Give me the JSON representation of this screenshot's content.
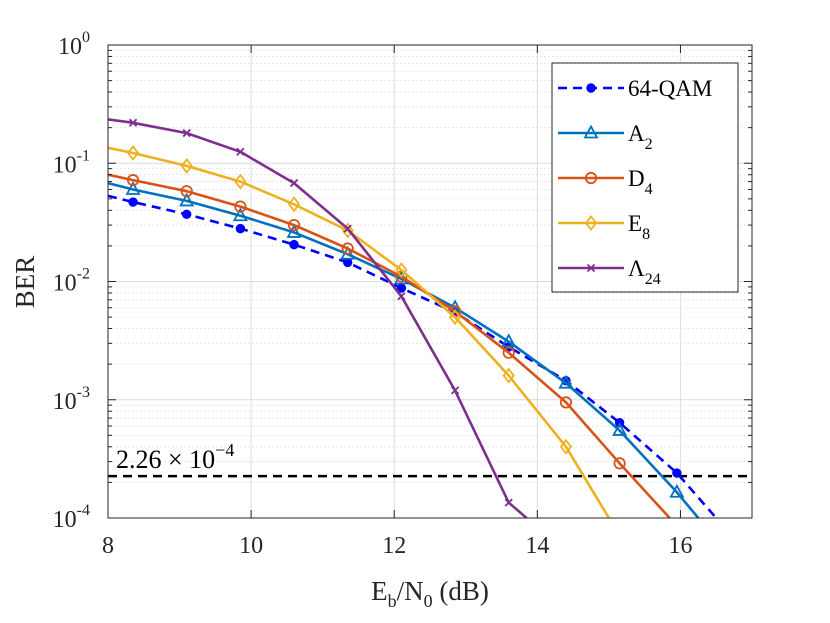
{
  "chart_data": {
    "type": "line",
    "title": "",
    "xlabel": {
      "main": "E",
      "sub1": "b",
      "slash": "/N",
      "sub2": "0",
      "unit": " (dB)"
    },
    "ylabel": "BER",
    "xlim": [
      8,
      17
    ],
    "ylim": [
      0.0001,
      1
    ],
    "yscale": "log",
    "grid": true,
    "minor_grid": true,
    "legend_position": "top-right",
    "x_ticks": [
      8,
      10,
      12,
      14,
      16
    ],
    "x_tick_labels": [
      "8",
      "10",
      "12",
      "14",
      "16"
    ],
    "y_ticks": [
      {
        "value": 1,
        "base": "10",
        "exp": "0"
      },
      {
        "value": 0.1,
        "base": "10",
        "exp": "-1"
      },
      {
        "value": 0.01,
        "base": "10",
        "exp": "-2"
      },
      {
        "value": 0.001,
        "base": "10",
        "exp": "-3"
      },
      {
        "value": 0.0001,
        "base": "10",
        "exp": "-4"
      }
    ],
    "series": [
      {
        "name": "64-QAM",
        "label": {
          "main": "64-QAM",
          "sub": ""
        },
        "color": "#0000ff",
        "line": "dashed",
        "marker": "dot",
        "x": [
          8,
          8.35,
          9.1,
          9.85,
          10.6,
          11.35,
          12.1,
          12.85,
          13.6,
          14.4,
          15.15,
          15.95,
          16.5
        ],
        "y": [
          0.053,
          0.047,
          0.037,
          0.028,
          0.0205,
          0.0145,
          0.0088,
          0.0055,
          0.0028,
          0.00145,
          0.00064,
          0.00024,
          0.0001
        ],
        "marker_x": [
          8.35,
          9.1,
          9.85,
          10.6,
          11.35,
          12.1,
          12.85,
          13.6,
          14.4,
          15.15,
          15.95
        ]
      },
      {
        "name": "A2",
        "label": {
          "main": "A",
          "sub": "2"
        },
        "color": "#0072bd",
        "line": "solid",
        "marker": "triangle",
        "x": [
          8,
          8.35,
          9.1,
          9.85,
          10.6,
          11.35,
          12.1,
          12.85,
          13.6,
          14.4,
          15.15,
          15.95,
          16.25
        ],
        "y": [
          0.068,
          0.06,
          0.048,
          0.036,
          0.026,
          0.017,
          0.0105,
          0.006,
          0.0031,
          0.00138,
          0.00055,
          0.000165,
          0.0001
        ],
        "marker_x": [
          8.35,
          9.1,
          9.85,
          10.6,
          11.35,
          12.1,
          12.85,
          13.6,
          14.4,
          15.15,
          15.95
        ]
      },
      {
        "name": "D4",
        "label": {
          "main": "D",
          "sub": "4"
        },
        "color": "#d95319",
        "line": "solid",
        "marker": "circle",
        "x": [
          8,
          8.35,
          9.1,
          9.85,
          10.6,
          11.35,
          12.1,
          12.85,
          13.6,
          14.4,
          15.15,
          15.85
        ],
        "y": [
          0.08,
          0.072,
          0.058,
          0.043,
          0.03,
          0.019,
          0.011,
          0.0056,
          0.0025,
          0.00095,
          0.00029,
          0.0001
        ],
        "marker_x": [
          8.35,
          9.1,
          9.85,
          10.6,
          11.35,
          12.1,
          12.85,
          13.6,
          14.4,
          15.15
        ]
      },
      {
        "name": "E8",
        "label": {
          "main": "E",
          "sub": "8"
        },
        "color": "#edb120",
        "line": "solid",
        "marker": "diamond",
        "x": [
          8,
          8.35,
          9.1,
          9.85,
          10.6,
          11.35,
          12.1,
          12.85,
          13.6,
          14.4,
          15.0
        ],
        "y": [
          0.135,
          0.122,
          0.095,
          0.07,
          0.045,
          0.027,
          0.0125,
          0.005,
          0.0016,
          0.0004,
          0.0001
        ],
        "marker_x": [
          8.35,
          9.1,
          9.85,
          10.6,
          11.35,
          12.1,
          12.85,
          13.6,
          14.4
        ]
      },
      {
        "name": "Λ24",
        "label": {
          "main": "Λ",
          "sub": "24"
        },
        "color": "#7e2f8e",
        "line": "solid",
        "marker": "cross",
        "x": [
          8,
          8.35,
          9.1,
          9.85,
          10.6,
          11.35,
          12.1,
          12.85,
          13.6,
          13.85
        ],
        "y": [
          0.235,
          0.22,
          0.18,
          0.125,
          0.068,
          0.028,
          0.0075,
          0.0012,
          0.000135,
          0.0001
        ],
        "marker_x": [
          8.35,
          9.1,
          9.85,
          10.6,
          11.35,
          12.1,
          12.85,
          13.6
        ]
      }
    ],
    "threshold": {
      "value": 0.000226,
      "color": "#000000",
      "line": "dashed",
      "label": {
        "base": "2.26 × 10",
        "exp": "−4"
      }
    }
  }
}
